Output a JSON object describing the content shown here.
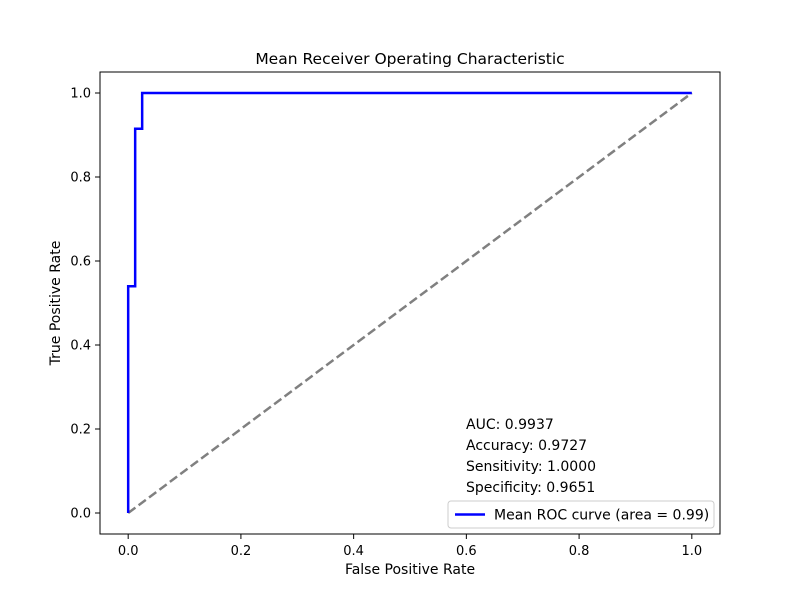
{
  "chart_data": {
    "type": "line",
    "title": "Mean Receiver Operating Characteristic",
    "xlabel": "False Positive Rate",
    "ylabel": "True Positive Rate",
    "xlim": [
      -0.05,
      1.05
    ],
    "ylim": [
      -0.05,
      1.05
    ],
    "grid": false,
    "x_ticks": [
      0.0,
      0.2,
      0.4,
      0.6,
      0.8,
      1.0
    ],
    "x_tick_labels": [
      "0.0",
      "0.2",
      "0.4",
      "0.6",
      "0.8",
      "1.0"
    ],
    "y_ticks": [
      0.0,
      0.2,
      0.4,
      0.6,
      0.8,
      1.0
    ],
    "y_tick_labels": [
      "0.0",
      "0.2",
      "0.4",
      "0.6",
      "0.8",
      "1.0"
    ],
    "series": [
      {
        "name": "Mean ROC curve (area = 0.99)",
        "color": "#0000ff",
        "style": "solid",
        "x": [
          0.0,
          0.0,
          0.0,
          0.0124,
          0.0124,
          0.0248,
          0.0248,
          1.0
        ],
        "y": [
          0.0,
          0.0,
          0.54,
          0.54,
          0.915,
          0.915,
          1.0,
          1.0
        ]
      },
      {
        "name": "",
        "color": "#808080",
        "style": "dashed",
        "x": [
          0.0,
          1.0
        ],
        "y": [
          0.0,
          1.0
        ]
      }
    ],
    "annotations": [
      "AUC: 0.9937",
      "Accuracy: 0.9727",
      "Sensitivity: 1.0000",
      "Specificity: 0.9651"
    ],
    "legend": {
      "placement": "lower-right",
      "entries": [
        "Mean ROC curve (area = 0.99)"
      ]
    }
  }
}
